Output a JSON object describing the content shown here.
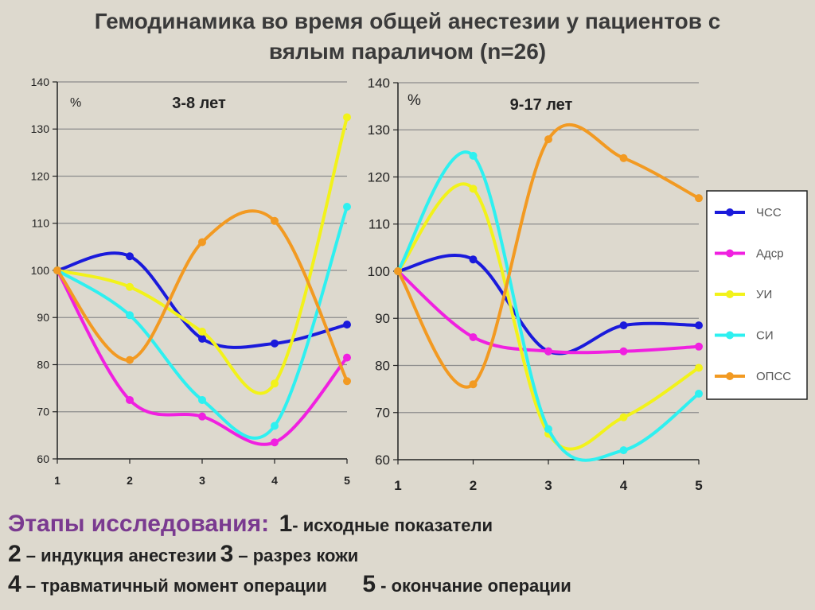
{
  "title": {
    "line1": "Гемодинамика во время общей анестезии у пациентов с",
    "line2": "вялым параличом (n=26)"
  },
  "colors": {
    "ЧСС": "#1a1adb",
    "Адср": "#f020e0",
    "УИ": "#f2f21a",
    "СИ": "#2ef0f0",
    "ОПСС": "#f29a22"
  },
  "chart_data": [
    {
      "type": "line",
      "title": "3-8 лет",
      "ylabel": "%",
      "x": [
        1,
        2,
        3,
        4,
        5
      ],
      "ylim": [
        60,
        140
      ],
      "yticks": [
        60,
        70,
        80,
        90,
        100,
        110,
        120,
        130,
        140
      ],
      "grid": true,
      "series": [
        {
          "name": "ЧСС",
          "values": [
            100,
            103,
            85.5,
            84.5,
            88.5
          ]
        },
        {
          "name": "Адср",
          "values": [
            100,
            72.5,
            69,
            63.5,
            81.5
          ]
        },
        {
          "name": "УИ",
          "values": [
            100,
            96.5,
            87,
            76,
            132.5
          ]
        },
        {
          "name": "СИ",
          "values": [
            100,
            90.5,
            72.5,
            67,
            113.5
          ]
        },
        {
          "name": "ОПСС",
          "values": [
            100,
            81,
            106,
            110.5,
            76.5
          ]
        }
      ]
    },
    {
      "type": "line",
      "title": "9-17 лет",
      "ylabel": "%",
      "x": [
        1,
        2,
        3,
        4,
        5
      ],
      "ylim": [
        60,
        140
      ],
      "yticks": [
        60,
        70,
        80,
        90,
        100,
        110,
        120,
        130,
        140
      ],
      "grid": true,
      "legend": "right",
      "series": [
        {
          "name": "ЧСС",
          "values": [
            100,
            102.5,
            83,
            88.5,
            88.5
          ]
        },
        {
          "name": "Адср",
          "values": [
            100,
            86,
            83,
            83,
            84
          ]
        },
        {
          "name": "УИ",
          "values": [
            100,
            117.5,
            65.5,
            69,
            79.5
          ]
        },
        {
          "name": "СИ",
          "values": [
            100,
            124.5,
            66.5,
            62,
            74
          ]
        },
        {
          "name": "ОПСС",
          "values": [
            100,
            76,
            128,
            124,
            115.5
          ]
        }
      ]
    }
  ],
  "bottom": {
    "stages_label": "Этапы исследования:",
    "n1": "1",
    "t1": "- исходные показатели",
    "n2": "2",
    "t2": " – индукция анестезии",
    "n3": "3",
    "t3": " – разрез кожи",
    "n4": "4",
    "t4": " – травматичный момент операции",
    "n5": "5",
    "t5": " - окончание операции"
  }
}
